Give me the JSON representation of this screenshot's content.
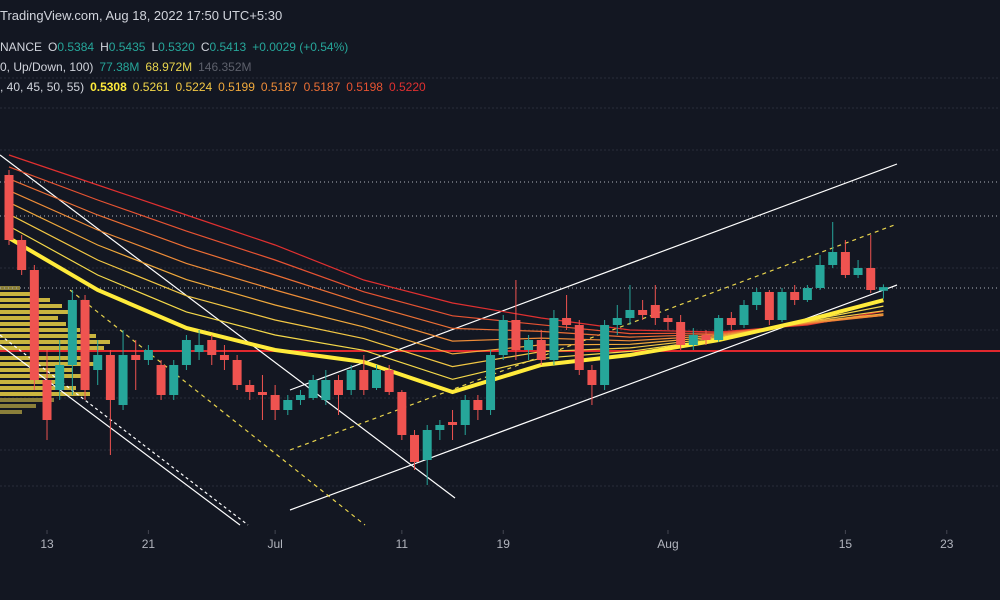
{
  "header": {
    "watermark": "TradingView.com, Aug 18, 2022 17:50 UTC+5:30",
    "rows": [
      {
        "texts": [
          "NANCE",
          "O",
          "0.5384",
          "H",
          "0.5435",
          "L",
          "0.5320",
          "C",
          "0.5413",
          "+0.0029 (+0.54%)"
        ],
        "colors": [
          "#d1d4dc",
          "#d1d4dc",
          "#26a69a",
          "#d1d4dc",
          "#26a69a",
          "#d1d4dc",
          "#26a69a",
          "#d1d4dc",
          "#26a69a",
          "#26a69a"
        ]
      },
      {
        "texts": [
          "0, Up/Down, 100)",
          "77.38M",
          "68.972M",
          "146.352M"
        ],
        "colors": [
          "#d1d4dc",
          "#26a69a",
          "#e8d44d",
          "#5d606b"
        ]
      },
      {
        "texts": [
          ", 40, 45, 50, 55)",
          "0.5308",
          "0.5261",
          "0.5224",
          "0.5199",
          "0.5187",
          "0.5187",
          "0.5198",
          "0.5220"
        ],
        "colors": [
          "#d1d4dc",
          "#ffeb3b",
          "#f5d94a",
          "#f2c744",
          "#f0a93c",
          "#ee8c38",
          "#ec6f35",
          "#e65332",
          "#e03030"
        ]
      }
    ]
  },
  "chart_data": {
    "type": "candlestick",
    "ylim": [
      0.347,
      0.771
    ],
    "xlim": [
      -0.71,
      78.2
    ],
    "xticks": [
      {
        "value": 3,
        "label": "13"
      },
      {
        "value": 11,
        "label": "21"
      },
      {
        "value": 21,
        "label": "Jul"
      },
      {
        "value": 31,
        "label": "11"
      },
      {
        "value": 39,
        "label": "19"
      },
      {
        "value": 52,
        "label": "Aug"
      },
      {
        "value": 66,
        "label": "15"
      },
      {
        "value": 74,
        "label": "23"
      }
    ],
    "up_color": "#26a69a",
    "down_color": "#ef5350",
    "ohlc": [
      [
        0.631,
        0.635,
        0.575,
        0.579
      ],
      [
        0.579,
        0.583,
        0.551,
        0.555
      ],
      [
        0.555,
        0.559,
        0.459,
        0.467
      ],
      [
        0.467,
        0.491,
        0.419,
        0.435
      ],
      [
        0.459,
        0.499,
        0.451,
        0.479
      ],
      [
        0.479,
        0.539,
        0.455,
        0.531
      ],
      [
        0.531,
        0.535,
        0.451,
        0.459
      ],
      [
        0.475,
        0.499,
        0.463,
        0.487
      ],
      [
        0.487,
        0.491,
        0.407,
        0.451
      ],
      [
        0.447,
        0.507,
        0.443,
        0.487
      ],
      [
        0.487,
        0.499,
        0.459,
        0.483
      ],
      [
        0.483,
        0.495,
        0.479,
        0.491
      ],
      [
        0.479,
        0.483,
        0.451,
        0.455
      ],
      [
        0.455,
        0.483,
        0.451,
        0.479
      ],
      [
        0.479,
        0.503,
        0.475,
        0.499
      ],
      [
        0.4894,
        0.507,
        0.483,
        0.495
      ],
      [
        0.499,
        0.503,
        0.479,
        0.487
      ],
      [
        0.487,
        0.495,
        0.475,
        0.483
      ],
      [
        0.483,
        0.487,
        0.459,
        0.463
      ],
      [
        0.463,
        0.467,
        0.451,
        0.4574
      ],
      [
        0.4574,
        0.471,
        0.435,
        0.455
      ],
      [
        0.455,
        0.463,
        0.435,
        0.443
      ],
      [
        0.443,
        0.455,
        0.439,
        0.451
      ],
      [
        0.451,
        0.459,
        0.447,
        0.455
      ],
      [
        0.4526,
        0.471,
        0.451,
        0.467
      ],
      [
        0.451,
        0.475,
        0.447,
        0.467
      ],
      [
        0.467,
        0.471,
        0.439,
        0.455
      ],
      [
        0.459,
        0.479,
        0.455,
        0.475
      ],
      [
        0.475,
        0.487,
        0.455,
        0.459
      ],
      [
        0.4606,
        0.479,
        0.459,
        0.475
      ],
      [
        0.475,
        0.479,
        0.455,
        0.4574
      ],
      [
        0.4574,
        0.459,
        0.419,
        0.423
      ],
      [
        0.423,
        0.427,
        0.395,
        0.4014
      ],
      [
        0.403,
        0.431,
        0.383,
        0.427
      ],
      [
        0.427,
        0.435,
        0.419,
        0.431
      ],
      [
        0.4334,
        0.443,
        0.419,
        0.431
      ],
      [
        0.431,
        0.455,
        0.423,
        0.451
      ],
      [
        0.451,
        0.455,
        0.435,
        0.443
      ],
      [
        0.443,
        0.491,
        0.439,
        0.487
      ],
      [
        0.487,
        0.519,
        0.483,
        0.515
      ],
      [
        0.515,
        0.547,
        0.483,
        0.491
      ],
      [
        0.491,
        0.503,
        0.483,
        0.499
      ],
      [
        0.499,
        0.507,
        0.479,
        0.483
      ],
      [
        0.483,
        0.523,
        0.479,
        0.5166
      ],
      [
        0.5166,
        0.535,
        0.507,
        0.511
      ],
      [
        0.511,
        0.515,
        0.471,
        0.475
      ],
      [
        0.475,
        0.479,
        0.447,
        0.463
      ],
      [
        0.463,
        0.515,
        0.459,
        0.511
      ],
      [
        0.511,
        0.527,
        0.503,
        0.5166
      ],
      [
        0.5166,
        0.543,
        0.511,
        0.523
      ],
      [
        0.523,
        0.531,
        0.515,
        0.519
      ],
      [
        0.527,
        0.543,
        0.511,
        0.5166
      ],
      [
        0.5166,
        0.519,
        0.507,
        0.5134
      ],
      [
        0.5134,
        0.519,
        0.491,
        0.495
      ],
      [
        0.495,
        0.5086,
        0.491,
        0.503
      ],
      [
        0.503,
        0.507,
        0.495,
        0.499
      ],
      [
        0.499,
        0.519,
        0.4974,
        0.5166
      ],
      [
        0.5166,
        0.5214,
        0.507,
        0.511
      ],
      [
        0.511,
        0.531,
        0.5086,
        0.527
      ],
      [
        0.527,
        0.5406,
        0.523,
        0.5374
      ],
      [
        0.5374,
        0.539,
        0.511,
        0.515
      ],
      [
        0.515,
        0.5406,
        0.5134,
        0.5374
      ],
      [
        0.5374,
        0.543,
        0.527,
        0.531
      ],
      [
        0.531,
        0.543,
        0.5294,
        0.5406
      ],
      [
        0.5406,
        0.567,
        0.539,
        0.559
      ],
      [
        0.559,
        0.5934,
        0.5566,
        0.5694
      ],
      [
        0.5694,
        0.579,
        0.5486,
        0.551
      ],
      [
        0.551,
        0.563,
        0.5486,
        0.5566
      ],
      [
        0.5566,
        0.583,
        0.5366,
        0.539
      ],
      [
        0.5384,
        0.5435,
        0.532,
        0.5413
      ]
    ],
    "ema_x": [
      0,
      7,
      14,
      21,
      28,
      35,
      42,
      49,
      56,
      63,
      69
    ],
    "series": [
      {
        "color": "#ffeb3b",
        "values": [
          0.5806,
          0.539,
          0.5086,
          0.491,
          0.4814,
          0.4574,
          0.479,
          0.487,
          0.499,
          0.515,
          0.5308
        ]
      },
      {
        "color": "#f5d94a",
        "values": [
          0.5901,
          0.551,
          0.5215,
          0.503,
          0.4908,
          0.4676,
          0.4844,
          0.4899,
          0.4999,
          0.5144,
          0.5261
        ]
      },
      {
        "color": "#f2c744",
        "values": [
          0.5996,
          0.563,
          0.5344,
          0.515,
          0.5001,
          0.4777,
          0.4897,
          0.4927,
          0.5008,
          0.5139,
          0.5224
        ]
      },
      {
        "color": "#f0a93c",
        "values": [
          0.6091,
          0.575,
          0.5473,
          0.527,
          0.5095,
          0.4879,
          0.4951,
          0.4956,
          0.5017,
          0.5133,
          0.5199
        ]
      },
      {
        "color": "#ee8c38",
        "values": [
          0.6185,
          0.587,
          0.5603,
          0.539,
          0.5189,
          0.4981,
          0.5005,
          0.4984,
          0.5027,
          0.5127,
          0.5187
        ]
      },
      {
        "color": "#ec6f35",
        "values": [
          0.628,
          0.599,
          0.5732,
          0.551,
          0.5283,
          0.5083,
          0.5059,
          0.5013,
          0.5036,
          0.5121,
          0.5187
        ]
      },
      {
        "color": "#e65332",
        "values": [
          0.6375,
          0.611,
          0.5861,
          0.563,
          0.5376,
          0.5184,
          0.5112,
          0.5041,
          0.5045,
          0.5116,
          0.5198
        ]
      },
      {
        "color": "#e03030",
        "values": [
          0.647,
          0.623,
          0.599,
          0.575,
          0.547,
          0.5286,
          0.5166,
          0.507,
          0.5054,
          0.511,
          0.522
        ]
      }
    ]
  }
}
